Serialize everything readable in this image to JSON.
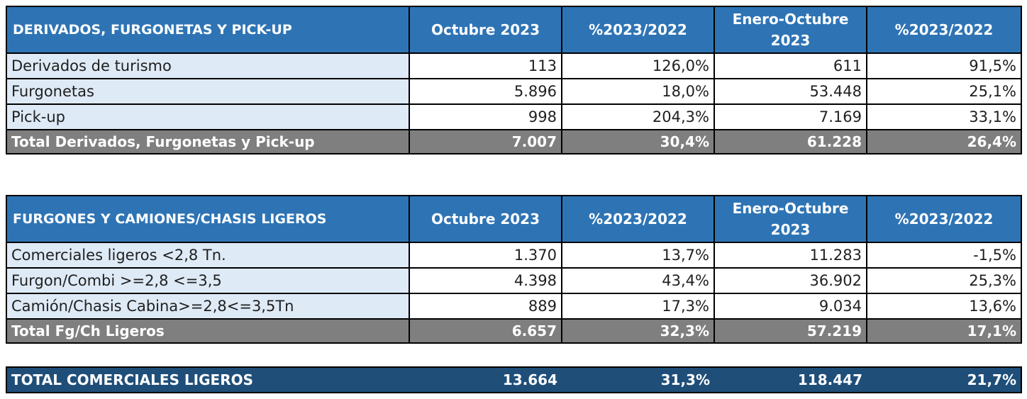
{
  "headers": {
    "col1": "Octubre 2023",
    "col2": "%2023/2022",
    "col3_line1": "Enero-Octubre",
    "col3_line2": "2023",
    "col4": "%2023/2022"
  },
  "section1": {
    "title": "DERIVADOS, FURGONETAS Y PICK-UP",
    "rows": [
      {
        "label": "Derivados de turismo",
        "oct": "113",
        "pct_oct": "126,0%",
        "ytd": "611",
        "pct_ytd": "91,5%"
      },
      {
        "label": "Furgonetas",
        "oct": "5.896",
        "pct_oct": "18,0%",
        "ytd": "53.448",
        "pct_ytd": "25,1%"
      },
      {
        "label": "Pick-up",
        "oct": "998",
        "pct_oct": "204,3%",
        "ytd": "7.169",
        "pct_ytd": "33,1%"
      }
    ],
    "total": {
      "label": "Total Derivados, Furgonetas y Pick-up",
      "oct": "7.007",
      "pct_oct": "30,4%",
      "ytd": "61.228",
      "pct_ytd": "26,4%"
    }
  },
  "section2": {
    "title": "FURGONES Y CAMIONES/CHASIS LIGEROS",
    "rows": [
      {
        "label": "Comerciales ligeros <2,8 Tn.",
        "oct": "1.370",
        "pct_oct": "13,7%",
        "ytd": "11.283",
        "pct_ytd": "-1,5%"
      },
      {
        "label": "Furgon/Combi >=2,8 <=3,5",
        "oct": "4.398",
        "pct_oct": "43,4%",
        "ytd": "36.902",
        "pct_ytd": "25,3%"
      },
      {
        "label": "Camión/Chasis Cabina>=2,8<=3,5Tn",
        "oct": "889",
        "pct_oct": "17,3%",
        "ytd": "9.034",
        "pct_ytd": "13,6%"
      }
    ],
    "total": {
      "label": "Total Fg/Ch Ligeros",
      "oct": "6.657",
      "pct_oct": "32,3%",
      "ytd": "57.219",
      "pct_ytd": "17,1%"
    }
  },
  "grand_total": {
    "label": "TOTAL COMERCIALES LIGEROS",
    "oct": "13.664",
    "pct_oct": "31,3%",
    "ytd": "118.447",
    "pct_ytd": "21,7%"
  },
  "colors": {
    "header_blue": "#2e74b5",
    "label_bg": "#deeaf6",
    "total_gray": "#7f7f7f",
    "grand_navy": "#1f4e79"
  }
}
